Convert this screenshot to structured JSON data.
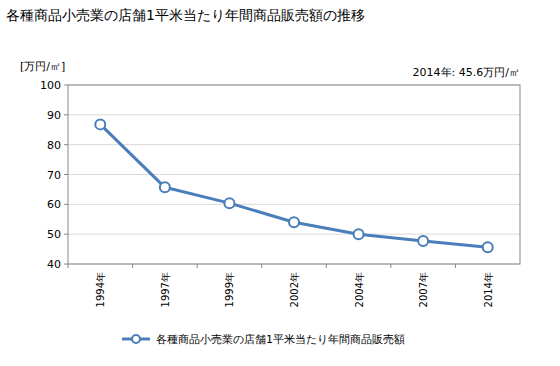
{
  "chart_data": {
    "type": "line",
    "title": "各種商品小売業の店舗1平米当たり年間商品販売額の推移",
    "y_label": "[万円/㎡]",
    "annotations": [
      "2014年: 45.6万円/㎡"
    ],
    "categories": [
      "1994年",
      "1997年",
      "1999年",
      "2002年",
      "2004年",
      "2007年",
      "2014年"
    ],
    "series": [
      {
        "name": "各種商品小売業の店舗1平米当たり年間商品販売額",
        "color": "#4a7ebb",
        "marker": "circle",
        "values": [
          86.8,
          65.7,
          60.4,
          54.0,
          50.0,
          47.7,
          45.6
        ]
      }
    ],
    "ylim": [
      40,
      100
    ],
    "yticks": [
      40,
      50,
      60,
      70,
      80,
      90,
      100
    ],
    "grid": true,
    "legend": "bottom"
  }
}
